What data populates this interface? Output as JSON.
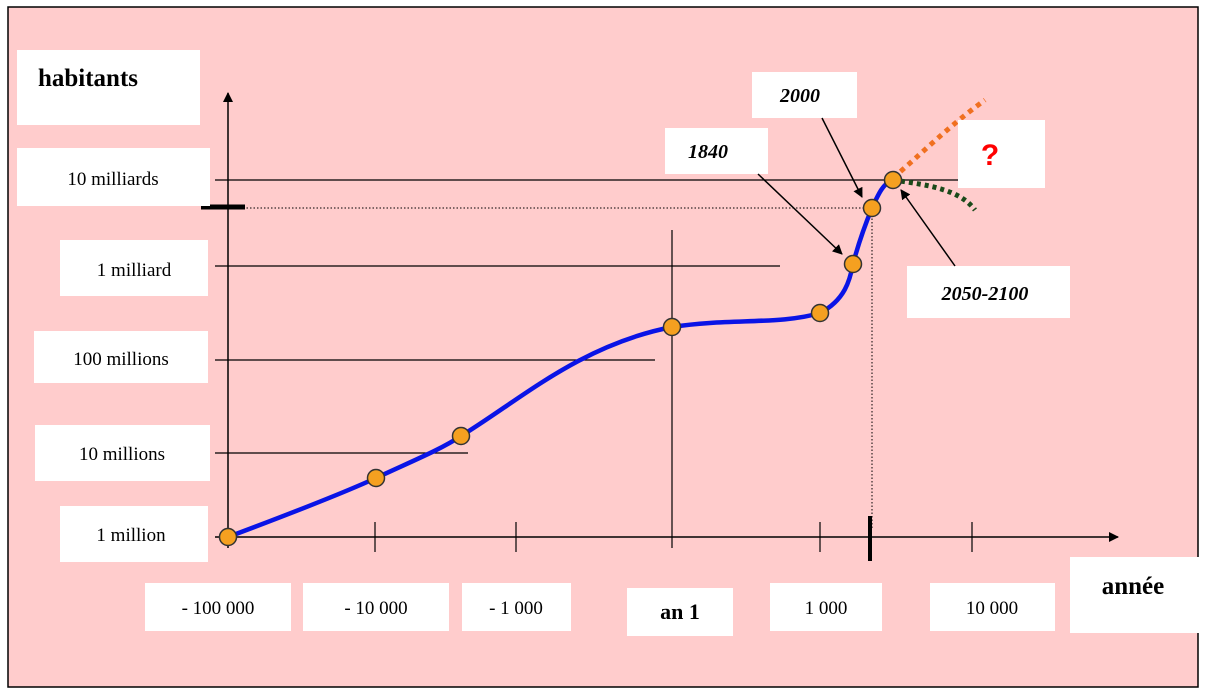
{
  "chart_data": {
    "type": "line",
    "title": "",
    "ylabel": "habitants",
    "xlabel": "année",
    "y_scale": "log",
    "x_scale": "log (symmetric)",
    "y_ticks": [
      "1 million",
      "10 millions",
      "100 millions",
      "1 milliard",
      "10 milliards"
    ],
    "x_ticks": [
      "- 100 000",
      "- 10 000",
      "- 1 000",
      "an 1",
      "1 000",
      "10 000"
    ],
    "series": [
      {
        "values": [
          {
            "year": "-100000",
            "population": 1000000
          },
          {
            "year": "-10000",
            "population": 4000000
          },
          {
            "year": "-3000",
            "population": 15000000
          },
          {
            "year": "1",
            "population": 250000000
          },
          {
            "year": "1000",
            "population": 300000000
          },
          {
            "year": "1840",
            "population": 1000000000
          },
          {
            "year": "2000",
            "population": 6000000000
          },
          {
            "year": "2050-2100",
            "population": 10000000000
          }
        ]
      }
    ],
    "annotations": [
      {
        "text": "1840"
      },
      {
        "text": "2000"
      },
      {
        "text": "2050-2100"
      },
      {
        "text": "?"
      }
    ],
    "projections": [
      {
        "style": "dotted",
        "color": "#f07020",
        "direction": "up"
      },
      {
        "style": "dotted",
        "color": "#1a4a1a",
        "direction": "down"
      }
    ],
    "colors": {
      "background": "#ffcccc",
      "curve": "#0a14e6",
      "point_fill": "#f5a020",
      "question_mark": "#ff0000"
    }
  }
}
